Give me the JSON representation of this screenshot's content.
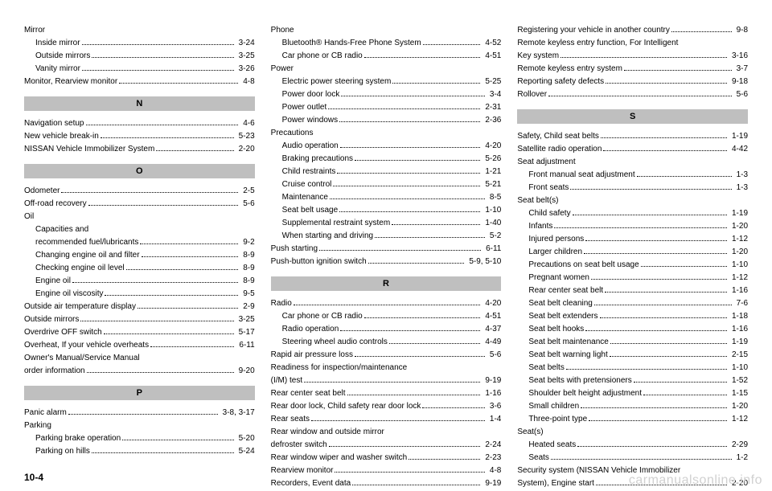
{
  "footer": "10-4",
  "watermark": "carmanualsonline.info",
  "columns": [
    {
      "items": [
        {
          "type": "group",
          "label": "Mirror"
        },
        {
          "type": "entry",
          "indent": true,
          "label": "Inside mirror",
          "page": "3-24"
        },
        {
          "type": "entry",
          "indent": true,
          "label": "Outside mirrors",
          "page": "3-25"
        },
        {
          "type": "entry",
          "indent": true,
          "label": "Vanity mirror",
          "page": "3-26"
        },
        {
          "type": "entry",
          "label": "Monitor, Rearview monitor",
          "page": "4-8"
        },
        {
          "type": "section",
          "label": "N"
        },
        {
          "type": "entry",
          "label": "Navigation setup",
          "page": "4-6"
        },
        {
          "type": "entry",
          "label": "New vehicle break-in",
          "page": "5-23"
        },
        {
          "type": "entry",
          "label": "NISSAN Vehicle Immobilizer System",
          "page": "2-20"
        },
        {
          "type": "section",
          "label": "O"
        },
        {
          "type": "entry",
          "label": "Odometer",
          "page": "2-5"
        },
        {
          "type": "entry",
          "label": "Off-road recovery",
          "page": "5-6"
        },
        {
          "type": "group",
          "label": "Oil"
        },
        {
          "type": "group",
          "indent": true,
          "label": "Capacities and"
        },
        {
          "type": "entry",
          "indent": true,
          "label": "recommended fuel/lubricants",
          "page": "9-2"
        },
        {
          "type": "entry",
          "indent": true,
          "label": "Changing engine oil and filter",
          "page": "8-9"
        },
        {
          "type": "entry",
          "indent": true,
          "label": "Checking engine oil level",
          "page": "8-9"
        },
        {
          "type": "entry",
          "indent": true,
          "label": "Engine oil",
          "page": "8-9"
        },
        {
          "type": "entry",
          "indent": true,
          "label": "Engine oil viscosity",
          "page": "9-5"
        },
        {
          "type": "entry",
          "label": "Outside air temperature display",
          "page": "2-9"
        },
        {
          "type": "entry",
          "label": "Outside mirrors",
          "page": "3-25"
        },
        {
          "type": "entry",
          "label": "Overdrive OFF switch",
          "page": "5-17"
        },
        {
          "type": "entry",
          "label": "Overheat, If your vehicle overheats",
          "page": "6-11"
        },
        {
          "type": "group",
          "label": "Owner's Manual/Service Manual"
        },
        {
          "type": "entry",
          "label": "order information",
          "page": "9-20"
        },
        {
          "type": "section",
          "label": "P"
        },
        {
          "type": "entry",
          "label": "Panic alarm",
          "page": "3-8, 3-17"
        },
        {
          "type": "group",
          "label": "Parking"
        },
        {
          "type": "entry",
          "indent": true,
          "label": "Parking brake operation",
          "page": "5-20"
        },
        {
          "type": "entry",
          "indent": true,
          "label": "Parking on hills",
          "page": "5-24"
        }
      ]
    },
    {
      "items": [
        {
          "type": "group",
          "label": "Phone"
        },
        {
          "type": "entry",
          "indent": true,
          "label": "Bluetooth® Hands-Free Phone System",
          "page": "4-52"
        },
        {
          "type": "entry",
          "indent": true,
          "label": "Car phone or CB radio",
          "page": "4-51"
        },
        {
          "type": "group",
          "label": "Power"
        },
        {
          "type": "entry",
          "indent": true,
          "label": "Electric power steering system",
          "page": "5-25"
        },
        {
          "type": "entry",
          "indent": true,
          "label": "Power door lock",
          "page": "3-4"
        },
        {
          "type": "entry",
          "indent": true,
          "label": "Power outlet",
          "page": "2-31"
        },
        {
          "type": "entry",
          "indent": true,
          "label": "Power windows",
          "page": "2-36"
        },
        {
          "type": "group",
          "label": "Precautions"
        },
        {
          "type": "entry",
          "indent": true,
          "label": "Audio operation",
          "page": "4-20"
        },
        {
          "type": "entry",
          "indent": true,
          "label": "Braking precautions",
          "page": "5-26"
        },
        {
          "type": "entry",
          "indent": true,
          "label": "Child restraints",
          "page": "1-21"
        },
        {
          "type": "entry",
          "indent": true,
          "label": "Cruise control",
          "page": "5-21"
        },
        {
          "type": "entry",
          "indent": true,
          "label": "Maintenance",
          "page": "8-5"
        },
        {
          "type": "entry",
          "indent": true,
          "label": "Seat belt usage",
          "page": "1-10"
        },
        {
          "type": "entry",
          "indent": true,
          "label": "Supplemental restraint system",
          "page": "1-40"
        },
        {
          "type": "entry",
          "indent": true,
          "label": "When starting and driving",
          "page": "5-2"
        },
        {
          "type": "entry",
          "label": "Push starting",
          "page": "6-11"
        },
        {
          "type": "entry",
          "label": "Push-button ignition switch",
          "page": "5-9, 5-10"
        },
        {
          "type": "section",
          "label": "R"
        },
        {
          "type": "entry",
          "label": "Radio",
          "page": "4-20"
        },
        {
          "type": "entry",
          "indent": true,
          "label": "Car phone or CB radio",
          "page": "4-51"
        },
        {
          "type": "entry",
          "indent": true,
          "label": "Radio operation",
          "page": "4-37"
        },
        {
          "type": "entry",
          "indent": true,
          "label": "Steering wheel audio controls",
          "page": "4-49"
        },
        {
          "type": "entry",
          "label": "Rapid air pressure loss",
          "page": "5-6"
        },
        {
          "type": "group",
          "label": "Readiness for inspection/maintenance"
        },
        {
          "type": "entry",
          "label": "(I/M) test",
          "page": "9-19"
        },
        {
          "type": "entry",
          "label": "Rear center seat belt",
          "page": "1-16"
        },
        {
          "type": "entry",
          "label": "Rear door lock, Child safety rear door lock",
          "page": "3-6"
        },
        {
          "type": "entry",
          "label": "Rear seats",
          "page": "1-4"
        },
        {
          "type": "group",
          "label": "Rear window and outside mirror"
        },
        {
          "type": "entry",
          "label": "defroster switch",
          "page": "2-24"
        },
        {
          "type": "entry",
          "label": "Rear window wiper and washer switch",
          "page": "2-23"
        },
        {
          "type": "entry",
          "label": "Rearview monitor",
          "page": "4-8"
        },
        {
          "type": "entry",
          "label": "Recorders, Event data",
          "page": "9-19"
        }
      ]
    },
    {
      "items": [
        {
          "type": "entry",
          "label": "Registering your vehicle in another country",
          "page": "9-8"
        },
        {
          "type": "group",
          "label": "Remote keyless entry function, For Intelligent"
        },
        {
          "type": "entry",
          "label": "Key system",
          "page": "3-16"
        },
        {
          "type": "entry",
          "label": "Remote keyless entry system",
          "page": "3-7"
        },
        {
          "type": "entry",
          "label": "Reporting safety defects",
          "page": "9-18"
        },
        {
          "type": "entry",
          "label": "Rollover",
          "page": "5-6"
        },
        {
          "type": "section",
          "label": "S"
        },
        {
          "type": "entry",
          "label": "Safety, Child seat belts",
          "page": "1-19"
        },
        {
          "type": "entry",
          "label": "Satellite radio operation",
          "page": "4-42"
        },
        {
          "type": "group",
          "label": "Seat adjustment"
        },
        {
          "type": "entry",
          "indent": true,
          "label": "Front manual seat adjustment",
          "page": "1-3"
        },
        {
          "type": "entry",
          "indent": true,
          "label": "Front seats",
          "page": "1-3"
        },
        {
          "type": "group",
          "label": "Seat belt(s)"
        },
        {
          "type": "entry",
          "indent": true,
          "label": "Child safety",
          "page": "1-19"
        },
        {
          "type": "entry",
          "indent": true,
          "label": "Infants",
          "page": "1-20"
        },
        {
          "type": "entry",
          "indent": true,
          "label": "Injured persons",
          "page": "1-12"
        },
        {
          "type": "entry",
          "indent": true,
          "label": "Larger children",
          "page": "1-20"
        },
        {
          "type": "entry",
          "indent": true,
          "label": "Precautions on seat belt usage",
          "page": "1-10"
        },
        {
          "type": "entry",
          "indent": true,
          "label": "Pregnant women",
          "page": "1-12"
        },
        {
          "type": "entry",
          "indent": true,
          "label": "Rear center seat belt",
          "page": "1-16"
        },
        {
          "type": "entry",
          "indent": true,
          "label": "Seat belt cleaning",
          "page": "7-6"
        },
        {
          "type": "entry",
          "indent": true,
          "label": "Seat belt extenders",
          "page": "1-18"
        },
        {
          "type": "entry",
          "indent": true,
          "label": "Seat belt hooks",
          "page": "1-16"
        },
        {
          "type": "entry",
          "indent": true,
          "label": "Seat belt maintenance",
          "page": "1-19"
        },
        {
          "type": "entry",
          "indent": true,
          "label": "Seat belt warning light",
          "page": "2-15"
        },
        {
          "type": "entry",
          "indent": true,
          "label": "Seat belts",
          "page": "1-10"
        },
        {
          "type": "entry",
          "indent": true,
          "label": "Seat belts with pretensioners",
          "page": "1-52"
        },
        {
          "type": "entry",
          "indent": true,
          "label": "Shoulder belt height adjustment",
          "page": "1-15"
        },
        {
          "type": "entry",
          "indent": true,
          "label": "Small children",
          "page": "1-20"
        },
        {
          "type": "entry",
          "indent": true,
          "label": "Three-point type",
          "page": "1-12"
        },
        {
          "type": "group",
          "label": "Seat(s)"
        },
        {
          "type": "entry",
          "indent": true,
          "label": "Heated seats",
          "page": "2-29"
        },
        {
          "type": "entry",
          "indent": true,
          "label": "Seats",
          "page": "1-2"
        },
        {
          "type": "group",
          "label": "Security system (NISSAN Vehicle Immobilizer"
        },
        {
          "type": "entry",
          "label": "System), Engine start",
          "page": "2-20"
        }
      ]
    }
  ]
}
